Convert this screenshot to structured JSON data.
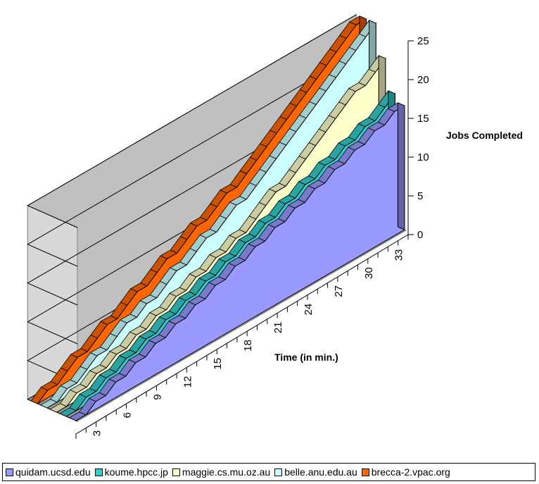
{
  "chart_data": {
    "type": "area",
    "view": "3d-stepped-area",
    "x": [
      1,
      2,
      3,
      4,
      5,
      6,
      7,
      8,
      9,
      10,
      11,
      12,
      13,
      14,
      15,
      16,
      17,
      18,
      19,
      20,
      21,
      22,
      23,
      24,
      25,
      26,
      27,
      28,
      29,
      30,
      31,
      32,
      33,
      34
    ],
    "x_tick_labels": [
      "3",
      "6",
      "9",
      "12",
      "15",
      "18",
      "21",
      "24",
      "27",
      "30",
      "33"
    ],
    "x_tick_values": [
      3,
      6,
      9,
      12,
      15,
      18,
      21,
      24,
      27,
      30,
      33
    ],
    "xlabel": "Time (in min.)",
    "ylabel": "Jobs Completed",
    "ylim": [
      0,
      25
    ],
    "y_ticks": [
      0,
      5,
      10,
      15,
      20,
      25
    ],
    "grid": true,
    "legend_position": "bottom",
    "series": [
      {
        "name": "quidam.ucsd.edu",
        "color": "#9999ff",
        "values": [
          0,
          0,
          1,
          1,
          2,
          2,
          3,
          3,
          4,
          4,
          5,
          5,
          6,
          6,
          7,
          7,
          8,
          8,
          9,
          9,
          10,
          10,
          11,
          11,
          12,
          12,
          13,
          13,
          14,
          14,
          15,
          15,
          16,
          16
        ]
      },
      {
        "name": "koume.hpcc.jp",
        "color": "#33cccc",
        "values": [
          0,
          0,
          1,
          1,
          2,
          2,
          3,
          3,
          4,
          4,
          5,
          5,
          6,
          6,
          7,
          7,
          8,
          8,
          9,
          9,
          10,
          10,
          11,
          11,
          12,
          12,
          13,
          13,
          14,
          14,
          15,
          15,
          16,
          17
        ]
      },
      {
        "name": "maggie.cs.mu.oz.au",
        "color": "#ffffcc",
        "values": [
          0,
          0,
          1,
          1,
          2,
          2,
          3,
          3,
          4,
          4,
          5,
          5,
          6,
          6,
          7,
          7,
          8,
          8,
          9,
          9,
          10,
          11,
          12,
          12,
          13,
          14,
          15,
          16,
          17,
          18,
          19,
          19,
          20,
          21
        ]
      },
      {
        "name": "belle.anu.edu.au",
        "color": "#ccffff",
        "values": [
          0,
          0,
          1,
          1,
          2,
          3,
          3,
          4,
          5,
          5,
          6,
          6,
          7,
          8,
          8,
          9,
          10,
          10,
          11,
          12,
          12,
          13,
          14,
          15,
          16,
          17,
          18,
          19,
          20,
          21,
          22,
          23,
          24,
          25
        ]
      },
      {
        "name": "brecca-2.vpac.org",
        "color": "#ff6600",
        "values": [
          0,
          1,
          1,
          2,
          3,
          3,
          4,
          5,
          5,
          6,
          7,
          7,
          8,
          9,
          9,
          10,
          11,
          11,
          12,
          13,
          13,
          14,
          15,
          16,
          17,
          18,
          19,
          20,
          21,
          22,
          23,
          24,
          25,
          25
        ]
      }
    ]
  }
}
